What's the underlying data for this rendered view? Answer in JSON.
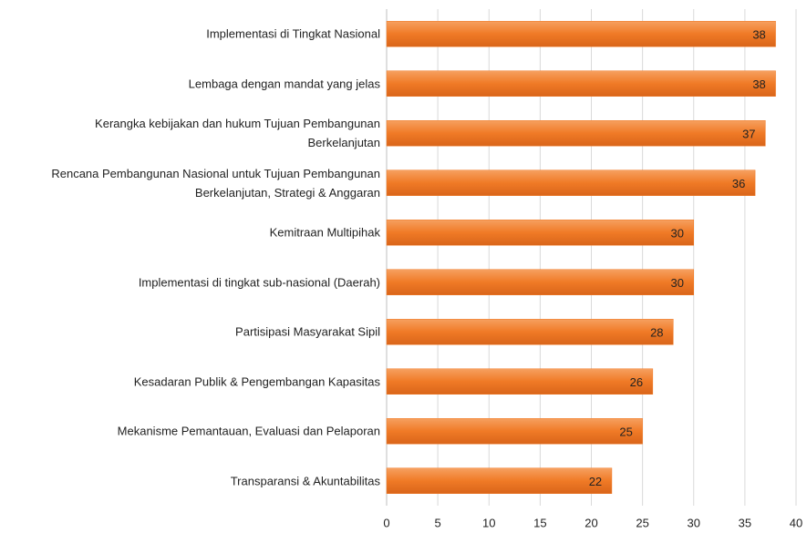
{
  "chart_data": {
    "type": "hbar",
    "categories": [
      "Implementasi di Tingkat Nasional",
      "Lembaga dengan mandat yang jelas",
      "Kerangka kebijakan dan hukum Tujuan Pembangunan\nBerkelanjutan",
      "Rencana Pembangunan Nasional untuk Tujuan Pembangunan\nBerkelanjutan, Strategi & Anggaran",
      "Kemitraan Multipihak",
      "Implementasi di tingkat sub-nasional (Daerah)",
      "Partisipasi Masyarakat Sipil",
      "Kesadaran Publik & Pengembangan Kapasitas",
      "Mekanisme Pemantauan, Evaluasi dan Pelaporan",
      "Transparansi & Akuntabilitas"
    ],
    "values": [
      38,
      38,
      37,
      36,
      30,
      30,
      28,
      26,
      25,
      22
    ],
    "color": "#f07a26",
    "xlim": [
      0,
      40
    ],
    "xticks": [
      0,
      5,
      10,
      15,
      20,
      25,
      30,
      35,
      40
    ],
    "grid": true
  }
}
